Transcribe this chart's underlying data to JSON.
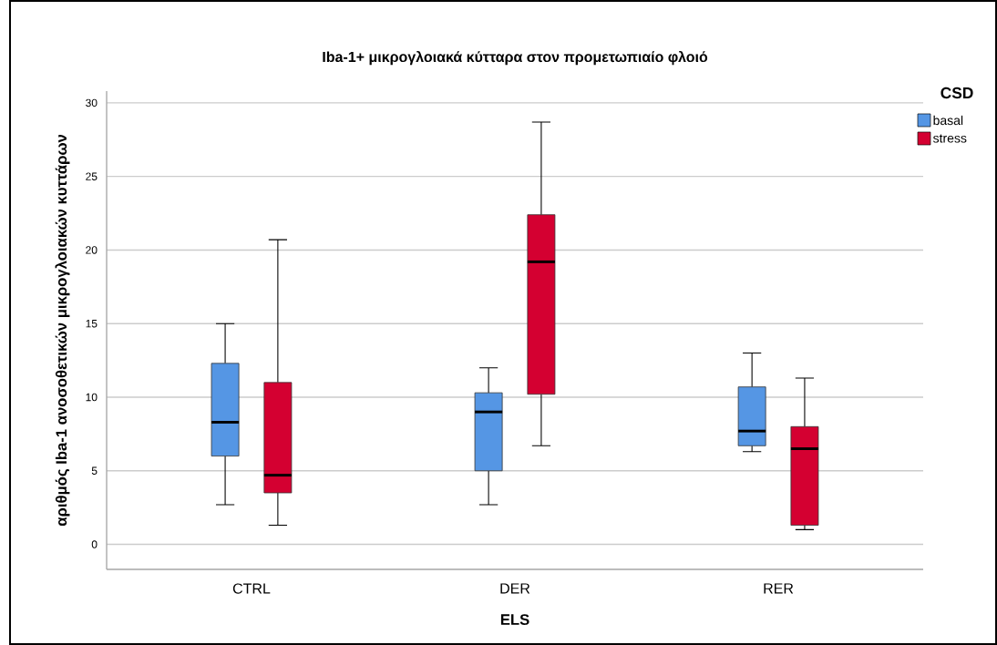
{
  "chart_data": {
    "type": "box",
    "title": "Iba-1+ μικρογλοιακά κύτταρα στον προμετωπιαίο φλοιό",
    "xlabel": "ELS",
    "ylabel": "αριθμός Iba-1 ανοσοθετικών μικρογλοιακών κυττάρων",
    "legend_title": "CSD",
    "categories": [
      "CTRL",
      "DER",
      "RER"
    ],
    "series": [
      {
        "name": "basal",
        "color": "#5596e4",
        "boxes": [
          {
            "low": 2.7,
            "q1": 6.0,
            "median": 8.3,
            "q3": 12.3,
            "high": 15.0
          },
          {
            "low": 2.7,
            "q1": 5.0,
            "median": 9.0,
            "q3": 10.3,
            "high": 12.0
          },
          {
            "low": 6.3,
            "q1": 6.7,
            "median": 7.7,
            "q3": 10.7,
            "high": 13.0
          }
        ]
      },
      {
        "name": "stress",
        "color": "#d40031",
        "boxes": [
          {
            "low": 1.3,
            "q1": 3.5,
            "median": 4.7,
            "q3": 11.0,
            "high": 20.7
          },
          {
            "low": 6.7,
            "q1": 10.2,
            "median": 19.2,
            "q3": 22.4,
            "high": 28.7
          },
          {
            "low": 1.0,
            "q1": 1.3,
            "median": 6.5,
            "q3": 8.0,
            "high": 11.3
          }
        ]
      }
    ],
    "ylim": [
      -1.7,
      30.8
    ],
    "yticks": [
      0,
      5,
      10,
      15,
      20,
      25,
      30
    ],
    "grid": "y",
    "legend": "top right"
  }
}
